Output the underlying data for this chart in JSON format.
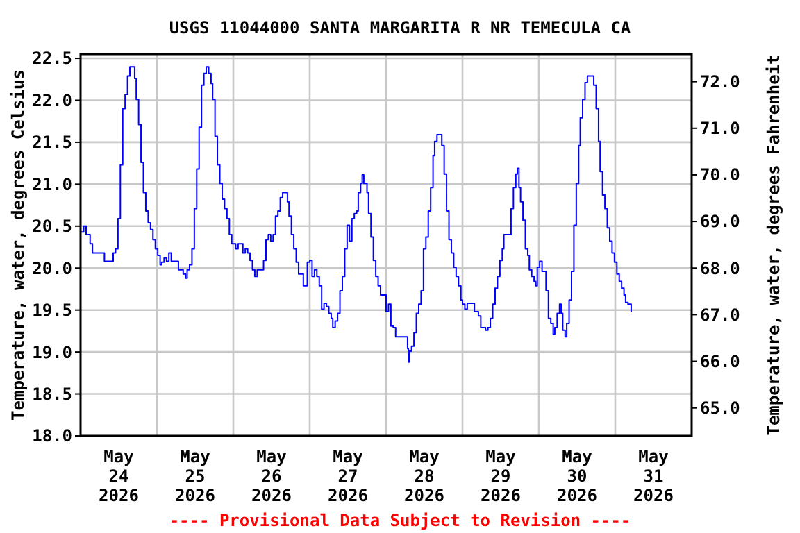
{
  "chart_data": {
    "type": "step",
    "title": "USGS 11044000 SANTA MARGARITA R NR TEMECULA CA",
    "ylabel": "Temperature, water, degrees Celsius",
    "y2label": "Temperature, water, degrees Fahrenheit",
    "annotations": [
      "---- Provisional Data Subject to Revision ----"
    ],
    "xlim": [
      "2026-05-24T00:00",
      "2026-06-01T00:00"
    ],
    "xticks": [
      {
        "value": "2026-05-24T12:00",
        "label": "May 24 2026"
      },
      {
        "value": "2026-05-25T00:00",
        "label": null
      },
      {
        "value": "2026-05-25T12:00",
        "label": "May 25 2026"
      },
      {
        "value": "2026-05-26T00:00",
        "label": null
      },
      {
        "value": "2026-05-26T12:00",
        "label": "May 26 2026"
      },
      {
        "value": "2026-05-27T00:00",
        "label": null
      },
      {
        "value": "2026-05-27T12:00",
        "label": "May 27 2026"
      },
      {
        "value": "2026-05-28T00:00",
        "label": null
      },
      {
        "value": "2026-05-28T12:00",
        "label": "May 28 2026"
      },
      {
        "value": "2026-05-29T00:00",
        "label": null
      },
      {
        "value": "2026-05-29T12:00",
        "label": "May 29 2026"
      },
      {
        "value": "2026-05-30T00:00",
        "label": null
      },
      {
        "value": "2026-05-30T12:00",
        "label": "May 30 2026"
      },
      {
        "value": "2026-05-31T00:00",
        "label": null
      },
      {
        "value": "2026-05-31T12:00",
        "label": "May 31 2026"
      }
    ],
    "ylim": [
      18.0,
      22.55
    ],
    "yticks": [
      {
        "value": 18,
        "label": "18.0"
      },
      18.5,
      {
        "value": 19,
        "label": "19.0"
      },
      19.5,
      {
        "value": 20,
        "label": "20.0"
      },
      20.5,
      {
        "value": 21,
        "label": "21.0"
      },
      21.5,
      {
        "value": 22,
        "label": "22.0"
      },
      22.5
    ],
    "y2lim": [
      64.4,
      72.59
    ],
    "y2ticks": [
      {
        "value": 65,
        "label": "65.0"
      },
      {
        "value": 66,
        "label": "66.0"
      },
      {
        "value": 67,
        "label": "67.0"
      },
      {
        "value": 68,
        "label": "68.0"
      },
      {
        "value": 69,
        "label": "69.0"
      },
      {
        "value": 70,
        "label": "70.0"
      },
      {
        "value": 71,
        "label": "71.0"
      },
      {
        "value": 72,
        "label": "72.0"
      }
    ],
    "grid": true,
    "series": [
      {
        "color": "#0000ff",
        "x": [
          "2026-05-24T00:00",
          "2026-05-24T01:00",
          "2026-05-24T01:45",
          "2026-05-24T02:45",
          "2026-05-24T03:00",
          "2026-05-24T03:45",
          "2026-05-24T04:30",
          "2026-05-24T06:45",
          "2026-05-24T07:30",
          "2026-05-24T09:30",
          "2026-05-24T10:15",
          "2026-05-24T11:00",
          "2026-05-24T11:45",
          "2026-05-24T12:30",
          "2026-05-24T13:15",
          "2026-05-24T14:00",
          "2026-05-24T14:45",
          "2026-05-24T15:30",
          "2026-05-24T16:15",
          "2026-05-24T17:00",
          "2026-05-24T17:30",
          "2026-05-24T18:15",
          "2026-05-24T19:00",
          "2026-05-24T19:45",
          "2026-05-24T20:30",
          "2026-05-24T21:15",
          "2026-05-24T22:00",
          "2026-05-24T22:45",
          "2026-05-24T23:30",
          "2026-05-25T00:15",
          "2026-05-25T01:00",
          "2026-05-25T01:30",
          "2026-05-25T02:15",
          "2026-05-25T03:00",
          "2026-05-25T03:45",
          "2026-05-25T04:30",
          "2026-05-25T06:00",
          "2026-05-25T06:45",
          "2026-05-25T07:30",
          "2026-05-25T08:15",
          "2026-05-25T09:00",
          "2026-05-25T09:30",
          "2026-05-25T10:15",
          "2026-05-25T11:00",
          "2026-05-25T11:45",
          "2026-05-25T12:30",
          "2026-05-25T13:15",
          "2026-05-25T14:00",
          "2026-05-25T14:45",
          "2026-05-25T15:30",
          "2026-05-25T16:15",
          "2026-05-25T17:00",
          "2026-05-25T17:30",
          "2026-05-25T18:15",
          "2026-05-25T19:00",
          "2026-05-25T19:45",
          "2026-05-25T20:30",
          "2026-05-25T21:15",
          "2026-05-25T22:00",
          "2026-05-25T22:45",
          "2026-05-25T23:30",
          "2026-05-26T00:45",
          "2026-05-26T01:30",
          "2026-05-26T03:00",
          "2026-05-26T03:45",
          "2026-05-26T04:30",
          "2026-05-26T05:15",
          "2026-05-26T06:00",
          "2026-05-26T06:45",
          "2026-05-26T07:30",
          "2026-05-26T09:00",
          "2026-05-26T09:30",
          "2026-05-26T10:15",
          "2026-05-26T11:00",
          "2026-05-26T11:45",
          "2026-05-26T12:30",
          "2026-05-26T13:15",
          "2026-05-26T14:00",
          "2026-05-26T14:45",
          "2026-05-26T15:30",
          "2026-05-26T16:15",
          "2026-05-26T17:00",
          "2026-05-26T17:30",
          "2026-05-26T18:15",
          "2026-05-26T19:00",
          "2026-05-26T19:45",
          "2026-05-26T20:30",
          "2026-05-26T22:00",
          "2026-05-26T22:45",
          "2026-05-26T23:15",
          "2026-05-27T00:00",
          "2026-05-27T00:45",
          "2026-05-27T01:30",
          "2026-05-27T02:15",
          "2026-05-27T03:00",
          "2026-05-27T03:45",
          "2026-05-27T04:30",
          "2026-05-27T05:15",
          "2026-05-27T06:00",
          "2026-05-27T06:45",
          "2026-05-27T07:15",
          "2026-05-27T08:00",
          "2026-05-27T08:45",
          "2026-05-27T09:30",
          "2026-05-27T10:15",
          "2026-05-27T11:00",
          "2026-05-27T11:45",
          "2026-05-27T12:30",
          "2026-05-27T13:15",
          "2026-05-27T14:00",
          "2026-05-27T14:45",
          "2026-05-27T15:15",
          "2026-05-27T16:00",
          "2026-05-27T16:30",
          "2026-05-27T17:00",
          "2026-05-27T18:00",
          "2026-05-27T18:30",
          "2026-05-27T19:15",
          "2026-05-27T20:00",
          "2026-05-27T20:45",
          "2026-05-27T21:30",
          "2026-05-27T22:15",
          "2026-05-27T23:15",
          "2026-05-28T00:00",
          "2026-05-28T00:45",
          "2026-05-28T01:30",
          "2026-05-28T02:15",
          "2026-05-28T03:00",
          "2026-05-28T06:00",
          "2026-05-28T06:45",
          "2026-05-28T07:00",
          "2026-05-28T07:15",
          "2026-05-28T08:00",
          "2026-05-28T08:45",
          "2026-05-28T09:30",
          "2026-05-28T10:15",
          "2026-05-28T11:00",
          "2026-05-28T11:45",
          "2026-05-28T12:30",
          "2026-05-28T13:15",
          "2026-05-28T14:00",
          "2026-05-28T14:45",
          "2026-05-28T15:15",
          "2026-05-28T16:00",
          "2026-05-28T16:45",
          "2026-05-28T17:30",
          "2026-05-28T18:15",
          "2026-05-28T19:00",
          "2026-05-28T19:45",
          "2026-05-28T20:30",
          "2026-05-28T21:15",
          "2026-05-28T22:00",
          "2026-05-28T22:45",
          "2026-05-28T23:30",
          "2026-05-29T00:00",
          "2026-05-29T00:45",
          "2026-05-29T01:30",
          "2026-05-29T03:00",
          "2026-05-29T03:45",
          "2026-05-29T05:00",
          "2026-05-29T05:45",
          "2026-05-29T07:15",
          "2026-05-29T08:00",
          "2026-05-29T08:45",
          "2026-05-29T09:30",
          "2026-05-29T10:15",
          "2026-05-29T11:00",
          "2026-05-29T11:45",
          "2026-05-29T12:30",
          "2026-05-29T13:00",
          "2026-05-29T14:30",
          "2026-05-29T15:15",
          "2026-05-29T16:00",
          "2026-05-29T16:45",
          "2026-05-29T17:15",
          "2026-05-29T17:45",
          "2026-05-29T18:15",
          "2026-05-29T19:00",
          "2026-05-29T19:45",
          "2026-05-29T20:30",
          "2026-05-29T21:00",
          "2026-05-29T21:45",
          "2026-05-29T22:30",
          "2026-05-29T23:00",
          "2026-05-29T23:30",
          "2026-05-30T00:15",
          "2026-05-30T01:00",
          "2026-05-30T01:45",
          "2026-05-30T02:15",
          "2026-05-30T03:00",
          "2026-05-30T03:45",
          "2026-05-30T04:30",
          "2026-05-30T05:00",
          "2026-05-30T05:45",
          "2026-05-30T06:30",
          "2026-05-30T07:00",
          "2026-05-30T07:30",
          "2026-05-30T08:15",
          "2026-05-30T08:45",
          "2026-05-30T09:30",
          "2026-05-30T10:15",
          "2026-05-30T11:00",
          "2026-05-30T11:45",
          "2026-05-30T12:30",
          "2026-05-30T13:00",
          "2026-05-30T13:45",
          "2026-05-30T14:30",
          "2026-05-30T15:15",
          "2026-05-30T16:30",
          "2026-05-30T17:15",
          "2026-05-30T18:00",
          "2026-05-30T18:45",
          "2026-05-30T19:15",
          "2026-05-30T20:00",
          "2026-05-30T20:45",
          "2026-05-30T21:30",
          "2026-05-30T22:15",
          "2026-05-30T23:00",
          "2026-05-30T23:45",
          "2026-05-31T00:30",
          "2026-05-31T01:15",
          "2026-05-31T02:00",
          "2026-05-31T02:45",
          "2026-05-31T03:15",
          "2026-05-31T04:00",
          "2026-05-31T05:00"
        ],
        "values": [
          20.43,
          20.5,
          20.4,
          20.4,
          20.29,
          20.18,
          20.18,
          20.18,
          20.08,
          20.08,
          20.18,
          20.23,
          20.59,
          21.23,
          21.9,
          22.07,
          22.29,
          22.4,
          22.4,
          22.26,
          22.01,
          21.71,
          21.26,
          20.9,
          20.68,
          20.54,
          20.46,
          20.34,
          20.23,
          20.15,
          20.04,
          20.07,
          20.12,
          20.08,
          20.18,
          20.08,
          20.08,
          19.98,
          19.98,
          19.93,
          19.88,
          19.98,
          20.04,
          20.23,
          20.71,
          21.18,
          21.68,
          22.18,
          22.32,
          22.4,
          22.32,
          22.2,
          22.01,
          21.57,
          21.23,
          21.01,
          20.82,
          20.71,
          20.59,
          20.4,
          20.29,
          20.23,
          20.29,
          20.18,
          20.23,
          20.18,
          20.09,
          19.98,
          19.9,
          19.98,
          19.98,
          20.09,
          20.34,
          20.4,
          20.32,
          20.4,
          20.62,
          20.68,
          20.84,
          20.9,
          20.9,
          20.79,
          20.62,
          20.4,
          20.23,
          20.07,
          19.93,
          19.79,
          19.79,
          20.07,
          20.09,
          19.9,
          19.98,
          19.9,
          19.79,
          19.51,
          19.58,
          19.54,
          19.46,
          19.4,
          19.29,
          19.37,
          19.46,
          19.73,
          19.9,
          20.23,
          20.51,
          20.32,
          20.59,
          20.65,
          20.68,
          20.9,
          21.01,
          21.11,
          21.01,
          20.9,
          20.65,
          20.37,
          20.09,
          19.9,
          19.79,
          19.68,
          19.68,
          19.48,
          19.57,
          19.31,
          19.29,
          19.18,
          19.18,
          19.04,
          18.88,
          19.01,
          19.07,
          19.23,
          19.46,
          19.57,
          19.73,
          20.23,
          20.37,
          20.68,
          20.96,
          21.34,
          21.51,
          21.59,
          21.59,
          21.46,
          21.12,
          20.68,
          20.34,
          20.18,
          20.01,
          19.9,
          19.79,
          19.62,
          19.57,
          19.51,
          19.58,
          19.58,
          19.48,
          19.43,
          19.29,
          19.26,
          19.29,
          19.4,
          19.57,
          19.76,
          19.9,
          20.09,
          20.23,
          20.4,
          20.4,
          20.71,
          20.96,
          21.12,
          21.19,
          20.96,
          20.79,
          20.57,
          20.23,
          20.15,
          19.98,
          19.9,
          19.84,
          19.79,
          20.01,
          20.08,
          19.96,
          19.96,
          19.73,
          19.4,
          19.34,
          19.21,
          19.29,
          19.46,
          19.57,
          19.46,
          19.26,
          19.18,
          19.34,
          19.62,
          19.96,
          20.51,
          21.01,
          21.46,
          21.79,
          22.01,
          22.21,
          22.29,
          22.29,
          22.18,
          21.9,
          21.51,
          21.15,
          20.87,
          20.71,
          20.48,
          20.32,
          20.18,
          20.07,
          19.93,
          19.84,
          19.76,
          19.68,
          19.59,
          19.57,
          19.48
        ]
      }
    ]
  }
}
